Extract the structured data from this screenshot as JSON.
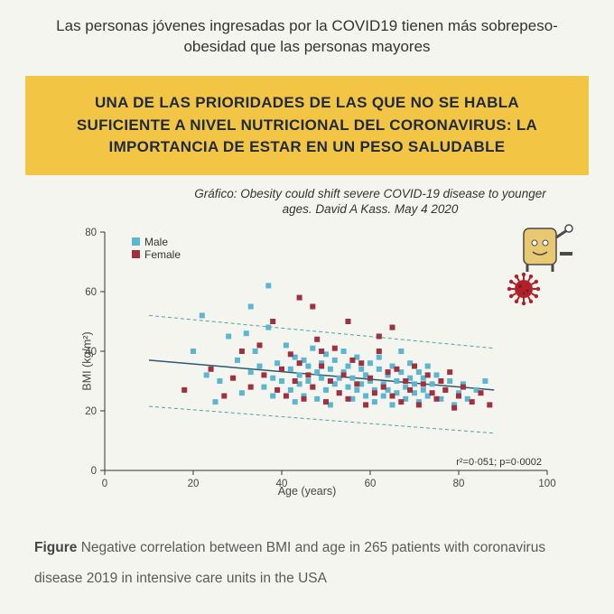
{
  "intro_text": "Las personas jóvenes ingresadas por la COVID19 tienen más sobrepeso-obesidad que las personas mayores",
  "highlight": {
    "text": "UNA DE LAS PRIORIDADES DE LAS QUE NO SE HABLA SUFICIENTE A NIVEL NUTRICIONAL DEL CORONAVIRUS: LA IMPORTANCIA DE ESTAR EN UN PESO SALUDABLE",
    "background_color": "#f3c545",
    "text_color": "#1f2a40"
  },
  "citation": "Gráfico: Obesity could shift severe COVID-19 disease to younger ages. David A Kass. May 4 2020",
  "chart": {
    "type": "scatter",
    "xlabel": "Age (years)",
    "ylabel": "BMI (kg/m²)",
    "xlim": [
      0,
      100
    ],
    "ylim": [
      0,
      80
    ],
    "xtick_step": 20,
    "ytick_step": 20,
    "background_color": "#ffffff",
    "axis_color": "#333333",
    "tick_fontsize": 11.5,
    "label_fontsize": 12.5,
    "marker_size": 6,
    "marker_shape": "square",
    "regression": {
      "color": "#2a5a70",
      "width": 1.5,
      "points": [
        [
          10,
          37
        ],
        [
          88,
          27
        ]
      ]
    },
    "ci_lines": {
      "color": "#4fa0a8",
      "dash": "4,3",
      "width": 1,
      "upper": [
        [
          10,
          52
        ],
        [
          88,
          41
        ]
      ],
      "lower": [
        [
          10,
          21.5
        ],
        [
          88,
          12.5
        ]
      ]
    },
    "stats_text": "r²=0·051; p=0·0002",
    "legend": {
      "items": [
        {
          "label": "Male",
          "color": "#5bb6d0"
        },
        {
          "label": "Female",
          "color": "#a03040"
        }
      ]
    },
    "series": [
      {
        "name": "Male",
        "color": "#5bb6d0",
        "points": [
          [
            20,
            40
          ],
          [
            22,
            52
          ],
          [
            23,
            32
          ],
          [
            25,
            23
          ],
          [
            26,
            30
          ],
          [
            28,
            45
          ],
          [
            30,
            37
          ],
          [
            31,
            26
          ],
          [
            32,
            46
          ],
          [
            33,
            33
          ],
          [
            34,
            40
          ],
          [
            35,
            35
          ],
          [
            36,
            28
          ],
          [
            37,
            48
          ],
          [
            38,
            25
          ],
          [
            38,
            31
          ],
          [
            39,
            36
          ],
          [
            40,
            30
          ],
          [
            41,
            42
          ],
          [
            42,
            27
          ],
          [
            42,
            34
          ],
          [
            43,
            23
          ],
          [
            43,
            38
          ],
          [
            44,
            32
          ],
          [
            44,
            29
          ],
          [
            45,
            37
          ],
          [
            45,
            25
          ],
          [
            46,
            35
          ],
          [
            46,
            30
          ],
          [
            47,
            41
          ],
          [
            47,
            28
          ],
          [
            48,
            33
          ],
          [
            48,
            24
          ],
          [
            49,
            36
          ],
          [
            49,
            31
          ],
          [
            50,
            39
          ],
          [
            50,
            27
          ],
          [
            51,
            34
          ],
          [
            51,
            22
          ],
          [
            52,
            29
          ],
          [
            52,
            37
          ],
          [
            53,
            31
          ],
          [
            53,
            26
          ],
          [
            54,
            40
          ],
          [
            54,
            33
          ],
          [
            55,
            28
          ],
          [
            55,
            35
          ],
          [
            56,
            24
          ],
          [
            56,
            31
          ],
          [
            57,
            38
          ],
          [
            57,
            27
          ],
          [
            58,
            29
          ],
          [
            58,
            34
          ],
          [
            59,
            25
          ],
          [
            59,
            32
          ],
          [
            60,
            36
          ],
          [
            60,
            30
          ],
          [
            61,
            23
          ],
          [
            61,
            27
          ],
          [
            62,
            34
          ],
          [
            62,
            38
          ],
          [
            63,
            29
          ],
          [
            63,
            25
          ],
          [
            64,
            32
          ],
          [
            64,
            27
          ],
          [
            65,
            35
          ],
          [
            65,
            22
          ],
          [
            66,
            30
          ],
          [
            66,
            26
          ],
          [
            67,
            33
          ],
          [
            67,
            40
          ],
          [
            68,
            28
          ],
          [
            68,
            24
          ],
          [
            69,
            31
          ],
          [
            69,
            36
          ],
          [
            70,
            26
          ],
          [
            70,
            29
          ],
          [
            71,
            33
          ],
          [
            71,
            23
          ],
          [
            72,
            27
          ],
          [
            72,
            31
          ],
          [
            73,
            35
          ],
          [
            73,
            25
          ],
          [
            74,
            29
          ],
          [
            75,
            32
          ],
          [
            76,
            24
          ],
          [
            77,
            27
          ],
          [
            78,
            30
          ],
          [
            79,
            22
          ],
          [
            80,
            26
          ],
          [
            81,
            29
          ],
          [
            82,
            24
          ],
          [
            84,
            27
          ],
          [
            86,
            30
          ],
          [
            33,
            55
          ],
          [
            37,
            62
          ]
        ]
      },
      {
        "name": "Female",
        "color": "#a03040",
        "points": [
          [
            18,
            27
          ],
          [
            24,
            34
          ],
          [
            27,
            25
          ],
          [
            29,
            31
          ],
          [
            31,
            40
          ],
          [
            33,
            28
          ],
          [
            35,
            42
          ],
          [
            36,
            32
          ],
          [
            38,
            50
          ],
          [
            39,
            27
          ],
          [
            40,
            34
          ],
          [
            41,
            25
          ],
          [
            42,
            39
          ],
          [
            43,
            30
          ],
          [
            44,
            36
          ],
          [
            45,
            24
          ],
          [
            46,
            32
          ],
          [
            47,
            28
          ],
          [
            48,
            44
          ],
          [
            49,
            35
          ],
          [
            50,
            23
          ],
          [
            51,
            30
          ],
          [
            52,
            41
          ],
          [
            53,
            26
          ],
          [
            54,
            32
          ],
          [
            55,
            24
          ],
          [
            56,
            37
          ],
          [
            57,
            29
          ],
          [
            58,
            36
          ],
          [
            59,
            22
          ],
          [
            60,
            31
          ],
          [
            61,
            26
          ],
          [
            62,
            40
          ],
          [
            63,
            28
          ],
          [
            64,
            33
          ],
          [
            65,
            25
          ],
          [
            66,
            34
          ],
          [
            67,
            23
          ],
          [
            68,
            30
          ],
          [
            69,
            27
          ],
          [
            70,
            35
          ],
          [
            71,
            22
          ],
          [
            72,
            29
          ],
          [
            73,
            32
          ],
          [
            74,
            26
          ],
          [
            75,
            24
          ],
          [
            76,
            30
          ],
          [
            77,
            27
          ],
          [
            78,
            33
          ],
          [
            79,
            21
          ],
          [
            80,
            25
          ],
          [
            81,
            28
          ],
          [
            83,
            23
          ],
          [
            85,
            26
          ],
          [
            87,
            22
          ],
          [
            44,
            58
          ],
          [
            55,
            50
          ],
          [
            47,
            55
          ],
          [
            65,
            48
          ],
          [
            49,
            40
          ],
          [
            62,
            45
          ]
        ]
      }
    ]
  },
  "caption": {
    "figure_word": "Figure",
    "text": "Negative correlation between BMI and age in 265 patients with coronavirus disease 2019 in intensive care units in the USA"
  },
  "decorations": {
    "virus_color": "#b02028",
    "microscope_body": "#e8c870",
    "microscope_dark": "#4a4a4a"
  }
}
